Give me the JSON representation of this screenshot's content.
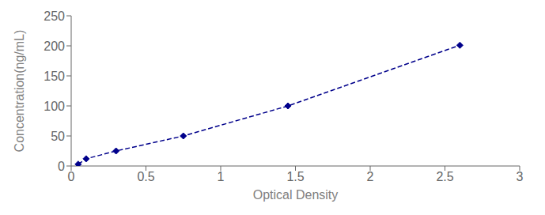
{
  "chart_data": {
    "type": "line",
    "xlabel": "Optical Density",
    "ylabel": "Concentration(ng/mL)",
    "x": [
      0.047,
      0.1,
      0.3,
      0.75,
      1.45,
      2.6
    ],
    "values": [
      3,
      12,
      25,
      50,
      100,
      201
    ],
    "color": "#00008B",
    "marker": "diamond",
    "line_style": "dashed",
    "xlim": [
      0,
      3
    ],
    "ylim": [
      0,
      250
    ],
    "xticks": [
      0,
      0.5,
      1,
      1.5,
      2,
      2.5,
      3
    ],
    "yticks": [
      0,
      50,
      100,
      150,
      200,
      250
    ],
    "grid": false
  }
}
